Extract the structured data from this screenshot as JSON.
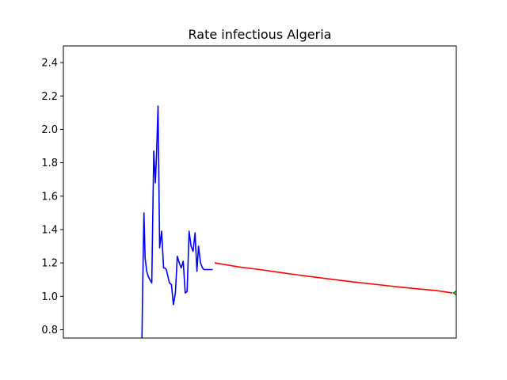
{
  "chart_data": {
    "type": "line",
    "title": "Rate infectious Algeria",
    "xlabel": "",
    "ylabel": "",
    "xlim": [
      0,
      100
    ],
    "ylim": [
      0.75,
      2.5
    ],
    "yticks": [
      "0.8",
      "1.0",
      "1.2",
      "1.4",
      "1.6",
      "1.8",
      "2.0",
      "2.2",
      "2.4"
    ],
    "ytick_values": [
      0.8,
      1.0,
      1.2,
      1.4,
      1.6,
      1.8,
      2.0,
      2.2,
      2.4
    ],
    "grid": false,
    "series": [
      {
        "color": "#0000ff",
        "x": [
          20.0,
          20.2,
          20.5,
          20.8,
          21.2,
          21.6,
          22.0,
          22.5,
          23.0,
          23.4,
          23.7,
          24.1,
          24.5,
          25.0,
          25.5,
          25.8,
          26.2,
          26.6,
          27.0,
          27.5,
          28.0,
          28.5,
          29.0,
          29.5,
          30.0,
          30.5,
          31.0,
          31.5,
          32.0,
          32.5,
          33.0,
          33.5,
          34.0,
          34.4,
          34.9,
          35.4,
          35.8,
          36.2,
          36.6,
          37.1,
          37.5,
          38.0
        ],
        "y": [
          0.75,
          1.08,
          1.5,
          1.23,
          1.15,
          1.12,
          1.1,
          1.08,
          1.87,
          1.68,
          1.85,
          2.14,
          1.29,
          1.39,
          1.17,
          1.17,
          1.16,
          1.12,
          1.08,
          1.07,
          0.95,
          1.02,
          1.24,
          1.2,
          1.17,
          1.21,
          1.02,
          1.03,
          1.39,
          1.3,
          1.27,
          1.38,
          1.15,
          1.3,
          1.2,
          1.17,
          1.16,
          1.16,
          1.16,
          1.16,
          1.16,
          1.16
        ]
      },
      {
        "color": "#ff0000",
        "x": [
          38.5,
          45,
          50,
          55,
          60,
          65,
          70,
          75,
          80,
          85,
          90,
          95,
          99
        ],
        "y": [
          1.2,
          1.175,
          1.16,
          1.143,
          1.127,
          1.112,
          1.097,
          1.083,
          1.07,
          1.057,
          1.045,
          1.034,
          1.02
        ]
      },
      {
        "color": "#008000",
        "x": [
          101.5,
          100.2,
          99.3,
          100.2,
          101.5
        ],
        "y": [
          1.045,
          1.035,
          1.02,
          1.005,
          0.995
        ]
      }
    ]
  }
}
